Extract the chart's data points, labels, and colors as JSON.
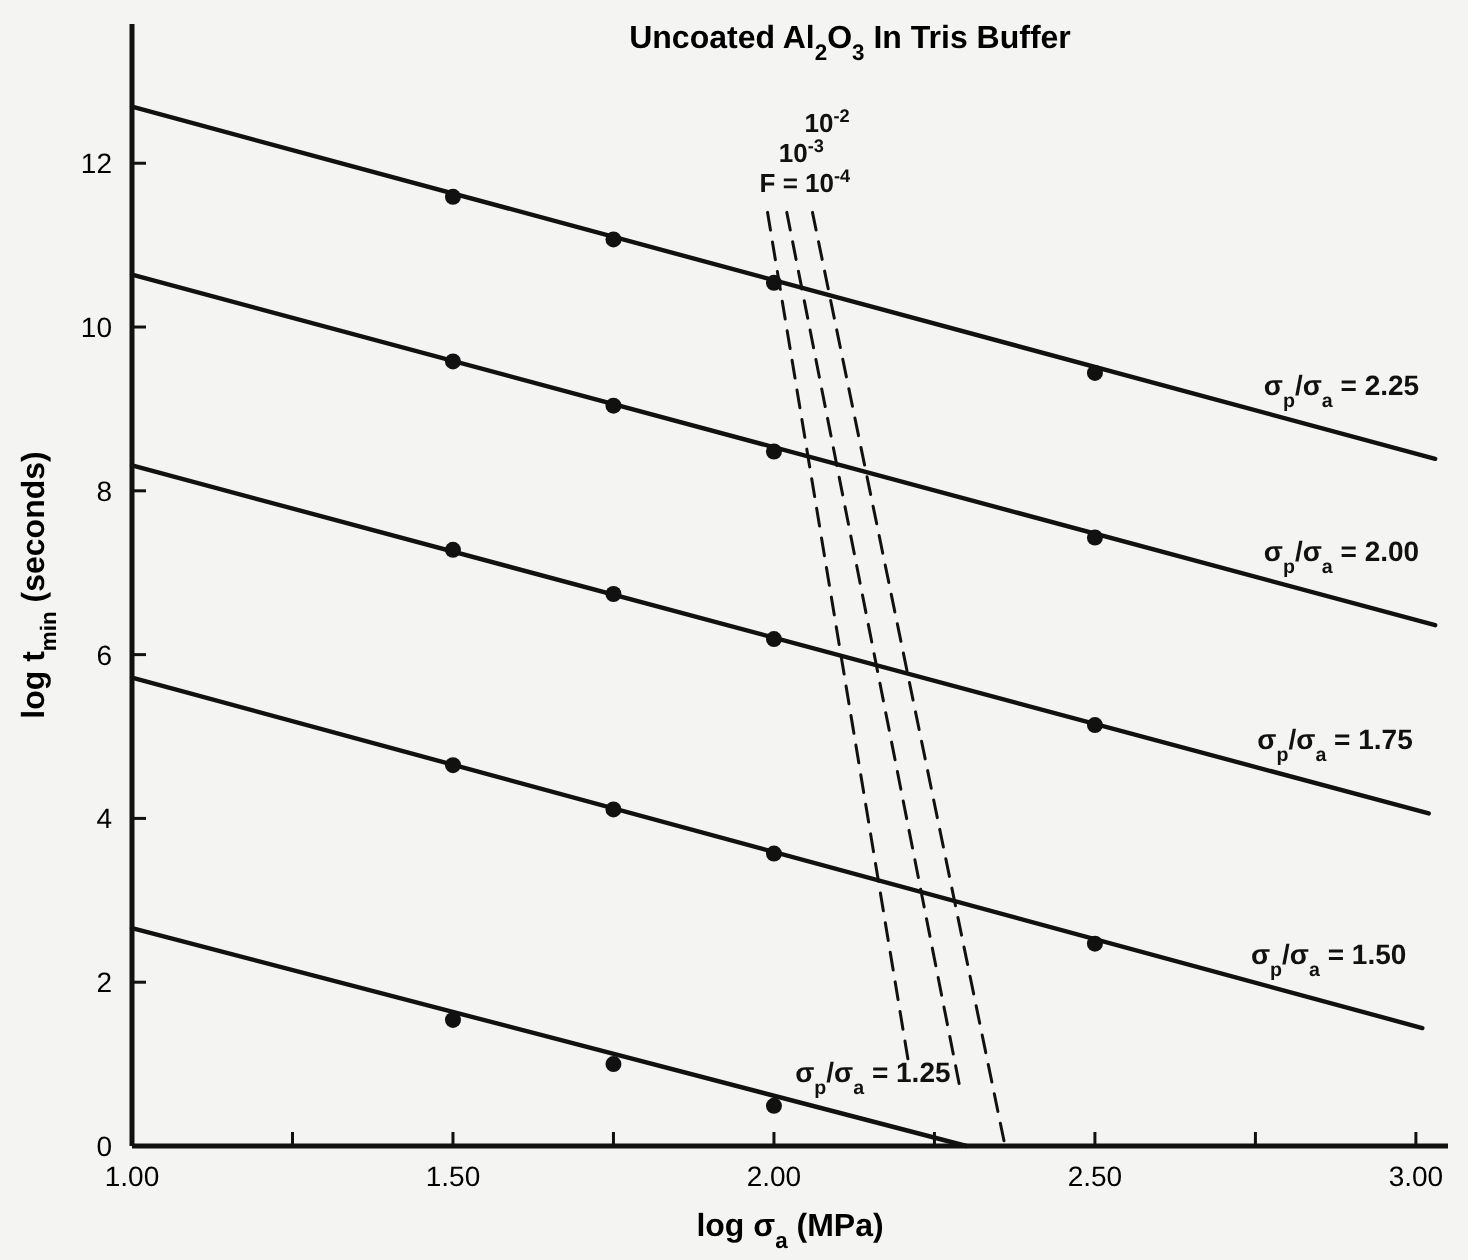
{
  "chart_data": {
    "type": "line",
    "title": "Uncoated Al$_{2}$O$_{3}$ In Tris Buffer",
    "xlabel": "log σ$_{a}$ (MPa)",
    "ylabel": "log t$_{min}$ (seconds)",
    "xlim": [
      1.0,
      3.05
    ],
    "ylim": [
      0,
      13.7
    ],
    "xticks": [
      {
        "value": 1.0,
        "label": "1.00"
      },
      {
        "value": 1.25,
        "label": null
      },
      {
        "value": 1.5,
        "label": "1.50"
      },
      {
        "value": 1.75,
        "label": null
      },
      {
        "value": 2.0,
        "label": "2.00"
      },
      {
        "value": 2.25,
        "label": null
      },
      {
        "value": 2.5,
        "label": "2.50"
      },
      {
        "value": 2.75,
        "label": null
      },
      {
        "value": 3.0,
        "label": "3.00"
      }
    ],
    "yticks": [
      0,
      2,
      4,
      6,
      8,
      10,
      12
    ],
    "grid": false,
    "series": [
      {
        "name": "σ$_{p}$/σ$_{a}$ = 2.25",
        "marker": "none",
        "line_style": "solid",
        "color": "#111111",
        "x": [
          1.0,
          3.03
        ],
        "values": [
          12.69,
          8.39
        ]
      },
      {
        "name": "σ$_{p}$/σ$_{a}$ = 2.00",
        "marker": "none",
        "line_style": "solid",
        "color": "#111111",
        "x": [
          1.0,
          3.03
        ],
        "values": [
          10.64,
          6.36
        ]
      },
      {
        "name": "σ$_{p}$/σ$_{a}$ = 1.75",
        "marker": "none",
        "line_style": "solid",
        "color": "#111111",
        "x": [
          1.0,
          3.02
        ],
        "values": [
          8.31,
          4.06
        ]
      },
      {
        "name": "σ$_{p}$/σ$_{a}$ = 1.50",
        "marker": "none",
        "line_style": "solid",
        "color": "#111111",
        "x": [
          1.0,
          3.01
        ],
        "values": [
          5.72,
          1.44
        ]
      },
      {
        "name": "σ$_{p}$/σ$_{a}$ = 1.25",
        "marker": "none",
        "line_style": "solid",
        "color": "#111111",
        "x": [
          1.0,
          2.3
        ],
        "values": [
          2.66,
          0
        ]
      },
      {
        "type": "scatter",
        "marker": "circle",
        "color": "#111111",
        "x": [
          1.5,
          1.75,
          2.0,
          2.5
        ],
        "values": [
          11.59,
          11.07,
          10.54,
          9.44
        ]
      },
      {
        "type": "scatter",
        "marker": "circle",
        "color": "#111111",
        "x": [
          1.5,
          1.75,
          2.0,
          2.5
        ],
        "values": [
          9.58,
          9.04,
          8.48,
          7.43
        ]
      },
      {
        "type": "scatter",
        "marker": "circle",
        "color": "#111111",
        "x": [
          1.5,
          1.75,
          2.0,
          2.5
        ],
        "values": [
          7.28,
          6.74,
          6.19,
          5.14
        ]
      },
      {
        "type": "scatter",
        "marker": "circle",
        "color": "#111111",
        "x": [
          1.5,
          1.75,
          2.0,
          2.5
        ],
        "values": [
          4.65,
          4.11,
          3.57,
          2.47
        ]
      },
      {
        "type": "scatter",
        "marker": "circle",
        "color": "#111111",
        "x": [
          1.5,
          1.75,
          2.0
        ],
        "values": [
          1.54,
          1.0,
          0.49
        ]
      },
      {
        "name": "F = 10$^{-4}$",
        "marker": "none",
        "line_style": "dashed",
        "color": "#111111",
        "x": [
          1.99,
          2.21
        ],
        "values": [
          11.4,
          1.0
        ]
      },
      {
        "name": "10$^{-3}$",
        "marker": "none",
        "line_style": "dashed",
        "color": "#111111",
        "x": [
          2.02,
          2.29
        ],
        "values": [
          11.4,
          0.7
        ]
      },
      {
        "name": "10$^{-2}$",
        "marker": "none",
        "line_style": "dashed",
        "color": "#111111",
        "x": [
          2.06,
          2.36
        ],
        "values": [
          11.4,
          0
        ]
      }
    ]
  }
}
